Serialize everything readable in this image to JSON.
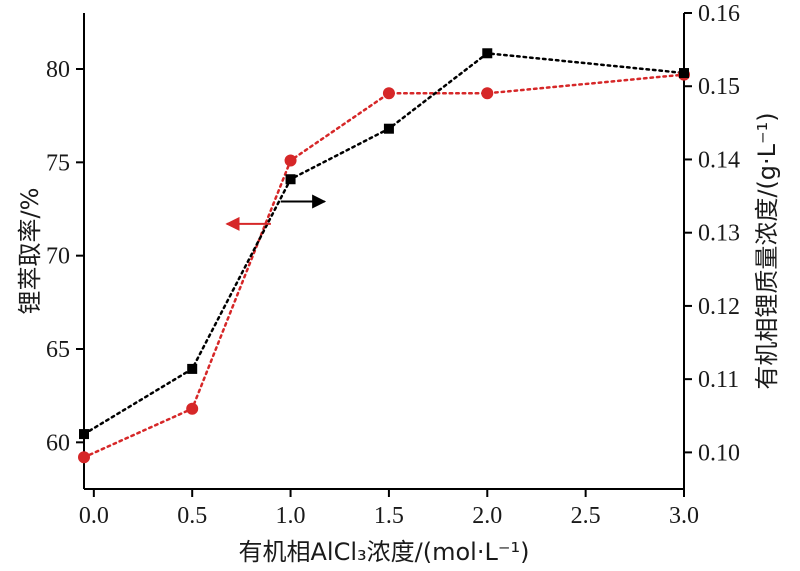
{
  "chart_data": {
    "type": "line",
    "xlabel": "有机相AlCl₃浓度/(mol·L⁻¹)",
    "ylabel_left": "锂萃取率/%",
    "ylabel_right": "有机相锂质量浓度/(g·L⁻¹)",
    "xlim": [
      -0.05,
      3.0
    ],
    "ylim_left": [
      57.5,
      83.0
    ],
    "ylim_right": [
      0.095,
      0.16
    ],
    "x_ticks": [
      "0.0",
      "0.5",
      "1.0",
      "1.5",
      "2.0",
      "2.5",
      "3.0"
    ],
    "y_left_ticks": [
      "60",
      "65",
      "70",
      "75",
      "80"
    ],
    "y_right_ticks": [
      "0.10",
      "0.11",
      "0.12",
      "0.13",
      "0.14",
      "0.15",
      "0.16"
    ],
    "grid": false,
    "series": [
      {
        "axis": "left",
        "color": "#d62728",
        "marker": "circle",
        "line": "dotted",
        "x": [
          -0.05,
          0.5,
          1.0,
          1.5,
          2.0,
          3.0
        ],
        "values": [
          59.2,
          61.8,
          75.1,
          78.7,
          78.7,
          79.7
        ]
      },
      {
        "axis": "right",
        "color": "#000000",
        "marker": "square",
        "line": "dotted",
        "x": [
          -0.05,
          0.5,
          1.0,
          1.5,
          2.0,
          3.0
        ],
        "values": [
          0.1025,
          0.1114,
          0.1373,
          0.1442,
          0.1545,
          0.1518
        ]
      }
    ],
    "annotations": [
      {
        "type": "arrow",
        "direction": "left",
        "color": "#d62728",
        "x": 0.9,
        "y_left": 71.7
      },
      {
        "type": "arrow",
        "direction": "right",
        "color": "#000000",
        "x": 0.95,
        "y_left": 72.9
      }
    ]
  }
}
